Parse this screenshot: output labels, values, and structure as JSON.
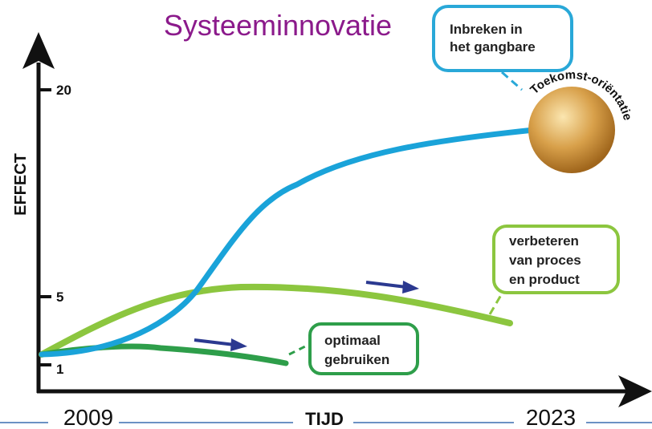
{
  "title": "Systeeminnovatie",
  "axes": {
    "y_label": "EFFECT",
    "x_label": "TIJD",
    "y_ticks": [
      "20",
      "5",
      "1"
    ],
    "x_start": "2009",
    "x_end": "2023"
  },
  "callouts": {
    "inbreken": [
      "Inbreken in",
      "het gangbare"
    ],
    "verbeteren": [
      "verbeteren",
      "van proces",
      "en product"
    ],
    "optimaal": [
      "optimaal",
      "gebruiken"
    ]
  },
  "sphere_label": "Toekomst-oriëntatie"
}
